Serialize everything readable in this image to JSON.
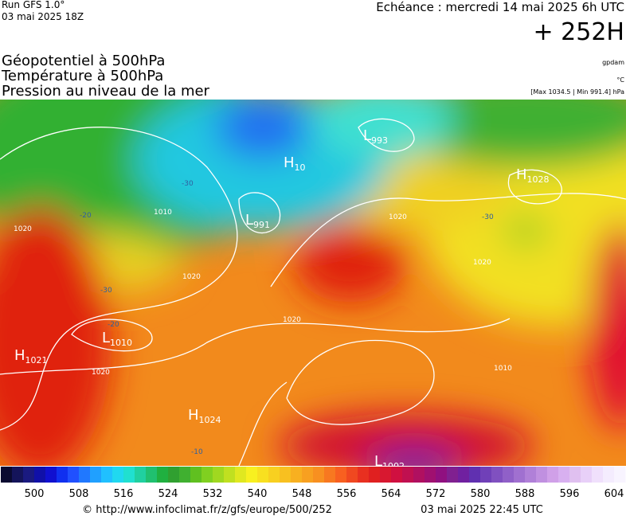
{
  "header": {
    "run": "Run GFS 1.0°",
    "run_date": "03 mai 2025 18Z",
    "echeance": "Echéance : mercredi 14 mai 2025 6h UTC",
    "lead": "+ 252H",
    "fields": [
      "Géopotentiel à 500hPa",
      "Température à 500hPa",
      "Pression au niveau de la mer"
    ],
    "unit_geopotential": "gpdam",
    "unit_temperature": "°C",
    "pressure_range": "[Max 1034.5 | Min 991.4] hPa"
  },
  "pressure_centers": [
    {
      "letter": "H",
      "value": "1021"
    },
    {
      "letter": "L",
      "value": "1010"
    },
    {
      "letter": "H",
      "value": "1024"
    },
    {
      "letter": "L",
      "value": "1002"
    },
    {
      "letter": "L",
      "value": "991"
    },
    {
      "letter": "H",
      "value": "10"
    },
    {
      "letter": "L",
      "value": "993"
    },
    {
      "letter": "H",
      "value": "1028"
    }
  ],
  "contour_labels": [
    "1020",
    "1010",
    "1020",
    "1020",
    "1020",
    "1020",
    "1010",
    "1020",
    "-30",
    "-20",
    "-30",
    "-20",
    "-10",
    "-30"
  ],
  "colorbar": {
    "range": [
      494,
      606
    ],
    "ticks": [
      500,
      508,
      516,
      524,
      532,
      540,
      548,
      556,
      564,
      572,
      580,
      588,
      596,
      604
    ]
  },
  "footer": {
    "url": "© http://www.infoclimat.fr/z/gfs/europe/500/252",
    "date": "03 mai 2025 22:45 UTC"
  }
}
